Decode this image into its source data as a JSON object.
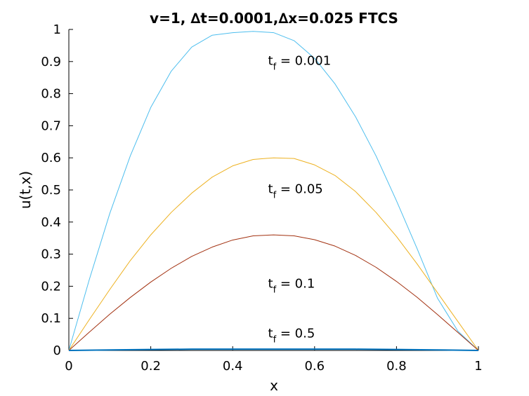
{
  "chart_data": {
    "type": "line",
    "title": "v=1, ∆t=0.0001,∆x=0.025 FTCS",
    "xlabel": "x",
    "ylabel": "u(t,x)",
    "xlim": [
      0,
      1
    ],
    "ylim": [
      0,
      1
    ],
    "xticks": [
      "0",
      "0.2",
      "0.4",
      "0.6",
      "0.8",
      "1"
    ],
    "yticks": [
      "0",
      "0.1",
      "0.2",
      "0.3",
      "0.4",
      "0.5",
      "0.6",
      "0.7",
      "0.8",
      "0.9",
      "1"
    ],
    "grid": false,
    "series": [
      {
        "color": "#4dbeee",
        "x": [
          0,
          0.05,
          0.1,
          0.15,
          0.2,
          0.25,
          0.3,
          0.35,
          0.4,
          0.45,
          0.5,
          0.55,
          0.6,
          0.65,
          0.7,
          0.75,
          0.8,
          0.85,
          0.9,
          0.95,
          1
        ],
        "y": [
          0,
          0.221,
          0.427,
          0.606,
          0.757,
          0.87,
          0.945,
          0.982,
          0.99,
          0.994,
          0.99,
          0.965,
          0.91,
          0.83,
          0.728,
          0.606,
          0.466,
          0.318,
          0.163,
          0.06,
          0
        ]
      },
      {
        "color": "#edb120",
        "x": [
          0,
          0.05,
          0.1,
          0.15,
          0.2,
          0.25,
          0.3,
          0.35,
          0.4,
          0.45,
          0.5,
          0.55,
          0.6,
          0.65,
          0.7,
          0.75,
          0.8,
          0.85,
          0.9,
          0.95,
          1
        ],
        "y": [
          0,
          0.096,
          0.19,
          0.28,
          0.36,
          0.43,
          0.49,
          0.54,
          0.575,
          0.595,
          0.6,
          0.598,
          0.578,
          0.545,
          0.495,
          0.43,
          0.355,
          0.27,
          0.18,
          0.09,
          0
        ]
      },
      {
        "color": "#a2300f",
        "x": [
          0,
          0.05,
          0.1,
          0.15,
          0.2,
          0.25,
          0.3,
          0.35,
          0.4,
          0.45,
          0.5,
          0.55,
          0.6,
          0.65,
          0.7,
          0.75,
          0.8,
          0.85,
          0.9,
          0.95,
          1
        ],
        "y": [
          0,
          0.057,
          0.113,
          0.165,
          0.213,
          0.256,
          0.293,
          0.322,
          0.344,
          0.357,
          0.36,
          0.357,
          0.345,
          0.325,
          0.296,
          0.259,
          0.215,
          0.166,
          0.112,
          0.056,
          0
        ]
      },
      {
        "color": "#0072bd",
        "x": [
          0,
          0.12,
          0.2,
          0.3,
          0.4,
          0.5,
          0.6,
          0.7,
          0.8,
          0.88,
          1
        ],
        "y": [
          0,
          0.002,
          0.003,
          0.004,
          0.004,
          0.004,
          0.004,
          0.004,
          0.003,
          0.002,
          0
        ]
      }
    ],
    "annotations": [
      {
        "base": "t",
        "sub": "f",
        "text": " = 0.001",
        "x": 0.5,
        "y": 0.89
      },
      {
        "base": "t",
        "sub": "f",
        "text": " = 0.05",
        "x": 0.5,
        "y": 0.49
      },
      {
        "base": "t",
        "sub": "f",
        "text": " = 0.1",
        "x": 0.5,
        "y": 0.195
      },
      {
        "base": "t",
        "sub": "f",
        "text": " = 0.5",
        "x": 0.5,
        "y": 0.04
      }
    ]
  }
}
